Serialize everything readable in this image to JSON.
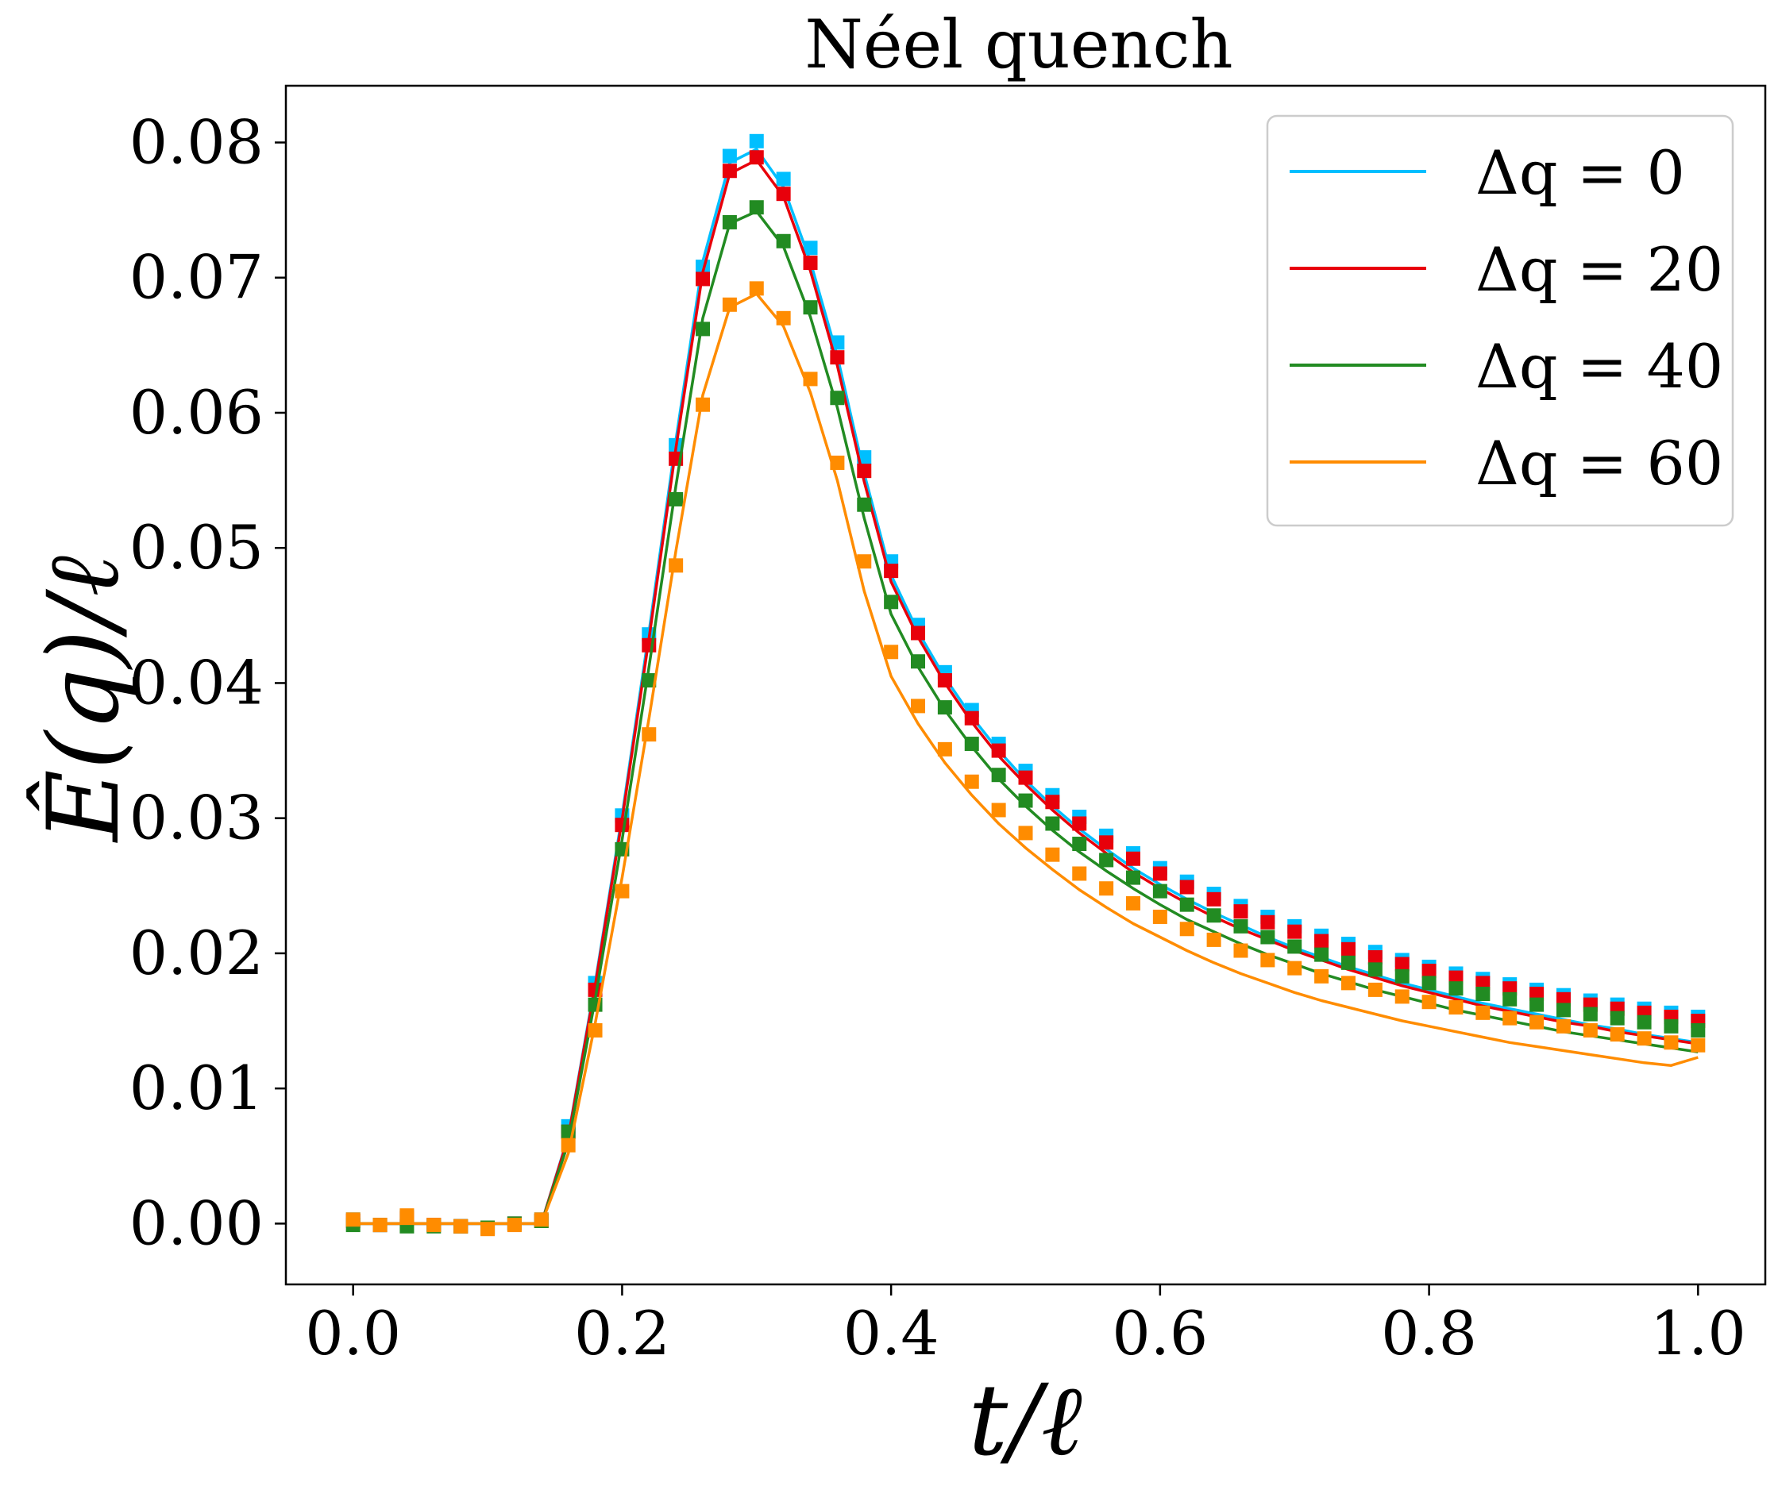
{
  "chart_data": {
    "type": "line",
    "title": "Néel quench",
    "xlabel": "t/ℓ",
    "ylabel": "Ê(q)/ℓ",
    "xlim": [
      -0.05,
      1.05
    ],
    "ylim": [
      -0.0045,
      0.0842
    ],
    "xticks": [
      0.0,
      0.2,
      0.4,
      0.6,
      0.8,
      1.0
    ],
    "xtick_labels": [
      "0.0",
      "0.2",
      "0.4",
      "0.6",
      "0.8",
      "1.0"
    ],
    "yticks": [
      0.0,
      0.01,
      0.02,
      0.03,
      0.04,
      0.05,
      0.06,
      0.07,
      0.08
    ],
    "ytick_labels": [
      "0.00",
      "0.01",
      "0.02",
      "0.03",
      "0.04",
      "0.05",
      "0.06",
      "0.07",
      "0.08"
    ],
    "grid": false,
    "legend_position": "top-right",
    "x": [
      0.0,
      0.02,
      0.04,
      0.06,
      0.08,
      0.1,
      0.12,
      0.14,
      0.16,
      0.18,
      0.2,
      0.22,
      0.24,
      0.26,
      0.28,
      0.3,
      0.32,
      0.34,
      0.36,
      0.38,
      0.4,
      0.42,
      0.44,
      0.46,
      0.48,
      0.5,
      0.52,
      0.54,
      0.56,
      0.58,
      0.6,
      0.62,
      0.64,
      0.66,
      0.68,
      0.7,
      0.72,
      0.74,
      0.76,
      0.78,
      0.8,
      0.82,
      0.84,
      0.86,
      0.88,
      0.9,
      0.92,
      0.94,
      0.96,
      0.98,
      1.0
    ],
    "series": [
      {
        "name": "Δq = 0",
        "color": "#00bfff",
        "curve": [
          0,
          0,
          0,
          0,
          0,
          0,
          0,
          0,
          0.0065,
          0.0178,
          0.0302,
          0.0438,
          0.058,
          0.0712,
          0.0785,
          0.0795,
          0.0767,
          0.0712,
          0.0642,
          0.0555,
          0.048,
          0.0438,
          0.0404,
          0.0375,
          0.035,
          0.0328,
          0.0309,
          0.0292,
          0.0277,
          0.0263,
          0.0251,
          0.024,
          0.023,
          0.0221,
          0.0212,
          0.0204,
          0.0197,
          0.019,
          0.0184,
          0.0178,
          0.0173,
          0.0168,
          0.0163,
          0.0159,
          0.0155,
          0.0151,
          0.0147,
          0.0144,
          0.014,
          0.0137,
          0.0134
        ],
        "markers": [
          0.0003,
          -0.0001,
          0.0005,
          -0.0001,
          -0.0002,
          -0.0003,
          0.0,
          0.0003,
          0.0072,
          0.0178,
          0.0302,
          0.0436,
          0.0576,
          0.0708,
          0.079,
          0.0801,
          0.0773,
          0.0722,
          0.0652,
          0.0567,
          0.049,
          0.0443,
          0.0408,
          0.038,
          0.0355,
          0.0335,
          0.0317,
          0.0301,
          0.0287,
          0.0274,
          0.0263,
          0.0253,
          0.0244,
          0.0235,
          0.0227,
          0.022,
          0.0213,
          0.0207,
          0.0201,
          0.0195,
          0.019,
          0.0185,
          0.0181,
          0.0177,
          0.0173,
          0.0169,
          0.0165,
          0.0162,
          0.0159,
          0.0156,
          0.0153
        ]
      },
      {
        "name": "Δq = 20",
        "color": "#e8000b",
        "curve": [
          0,
          0,
          0,
          0,
          0,
          0,
          0,
          0,
          0.0064,
          0.0176,
          0.0299,
          0.0433,
          0.0574,
          0.0704,
          0.0777,
          0.0787,
          0.076,
          0.0705,
          0.0635,
          0.0549,
          0.0475,
          0.0434,
          0.04,
          0.0371,
          0.0346,
          0.0325,
          0.0306,
          0.0289,
          0.0274,
          0.026,
          0.0248,
          0.0237,
          0.0227,
          0.0218,
          0.021,
          0.0202,
          0.0195,
          0.0188,
          0.0182,
          0.0176,
          0.0171,
          0.0166,
          0.0161,
          0.0157,
          0.0153,
          0.0149,
          0.0146,
          0.0142,
          0.0139,
          0.0136,
          0.0133
        ],
        "markers": [
          0.0002,
          -0.0001,
          0.0004,
          -0.0001,
          -0.0002,
          -0.0003,
          0.0,
          0.0002,
          0.0068,
          0.0173,
          0.0295,
          0.0428,
          0.0566,
          0.0699,
          0.0779,
          0.0789,
          0.0762,
          0.0711,
          0.0641,
          0.0557,
          0.0483,
          0.0437,
          0.0402,
          0.0374,
          0.035,
          0.033,
          0.0312,
          0.0296,
          0.0282,
          0.027,
          0.0259,
          0.0249,
          0.024,
          0.0231,
          0.0223,
          0.0216,
          0.0209,
          0.0203,
          0.0197,
          0.0192,
          0.0187,
          0.0182,
          0.0178,
          0.0174,
          0.017,
          0.0166,
          0.0162,
          0.0159,
          0.0156,
          0.0153,
          0.015
        ]
      },
      {
        "name": "Δq = 40",
        "color": "#228b22",
        "curve": [
          0,
          0,
          0,
          0,
          0,
          0,
          0,
          0,
          0.006,
          0.0166,
          0.0284,
          0.0412,
          0.0546,
          0.067,
          0.074,
          0.0749,
          0.0723,
          0.0671,
          0.0604,
          0.0522,
          0.0451,
          0.0412,
          0.038,
          0.0353,
          0.0329,
          0.0309,
          0.0291,
          0.0275,
          0.0261,
          0.0248,
          0.0236,
          0.0225,
          0.0216,
          0.0207,
          0.0199,
          0.0192,
          0.0185,
          0.0179,
          0.0173,
          0.0168,
          0.0163,
          0.0158,
          0.0154,
          0.015,
          0.0146,
          0.0142,
          0.0139,
          0.0136,
          0.0133,
          0.013,
          0.0127
        ],
        "markers": [
          -0.0001,
          -0.0001,
          -0.0002,
          -0.0002,
          -0.0002,
          -0.0003,
          0.0,
          0.0002,
          0.0068,
          0.0162,
          0.0277,
          0.0402,
          0.0536,
          0.0662,
          0.0741,
          0.0752,
          0.0727,
          0.0678,
          0.0611,
          0.0532,
          0.046,
          0.0416,
          0.0382,
          0.0355,
          0.0332,
          0.0313,
          0.0296,
          0.0281,
          0.0269,
          0.0256,
          0.0246,
          0.0236,
          0.0228,
          0.022,
          0.0212,
          0.0205,
          0.0199,
          0.0193,
          0.0188,
          0.0183,
          0.0178,
          0.0174,
          0.017,
          0.0166,
          0.0162,
          0.0158,
          0.0155,
          0.0152,
          0.0149,
          0.0146,
          0.0143
        ]
      },
      {
        "name": "Δq = 60",
        "color": "#ff8c00",
        "curve": [
          0,
          0,
          0,
          0,
          0,
          0,
          0,
          0,
          0.0052,
          0.0148,
          0.0256,
          0.0374,
          0.0498,
          0.0613,
          0.0678,
          0.0688,
          0.0664,
          0.0615,
          0.055,
          0.0468,
          0.0405,
          0.037,
          0.0341,
          0.0317,
          0.0296,
          0.0278,
          0.0262,
          0.0247,
          0.0234,
          0.0222,
          0.0212,
          0.0202,
          0.0193,
          0.0185,
          0.0178,
          0.0171,
          0.0165,
          0.016,
          0.0155,
          0.015,
          0.0146,
          0.0142,
          0.0138,
          0.0134,
          0.0131,
          0.0128,
          0.0125,
          0.0122,
          0.0119,
          0.0117,
          0.0123
        ],
        "markers": [
          0.0003,
          -0.0001,
          0.0006,
          -0.0001,
          -0.0002,
          -0.0004,
          -0.0001,
          0.0003,
          0.0058,
          0.0143,
          0.0246,
          0.0362,
          0.0487,
          0.0606,
          0.068,
          0.0692,
          0.067,
          0.0625,
          0.0563,
          0.049,
          0.0423,
          0.0383,
          0.0351,
          0.0327,
          0.0306,
          0.0289,
          0.0273,
          0.0259,
          0.0248,
          0.0237,
          0.0227,
          0.0218,
          0.021,
          0.0202,
          0.0195,
          0.0189,
          0.0183,
          0.0178,
          0.0173,
          0.0168,
          0.0164,
          0.016,
          0.0156,
          0.0152,
          0.0149,
          0.0146,
          0.0143,
          0.014,
          0.0137,
          0.0134,
          0.0132
        ]
      }
    ]
  }
}
